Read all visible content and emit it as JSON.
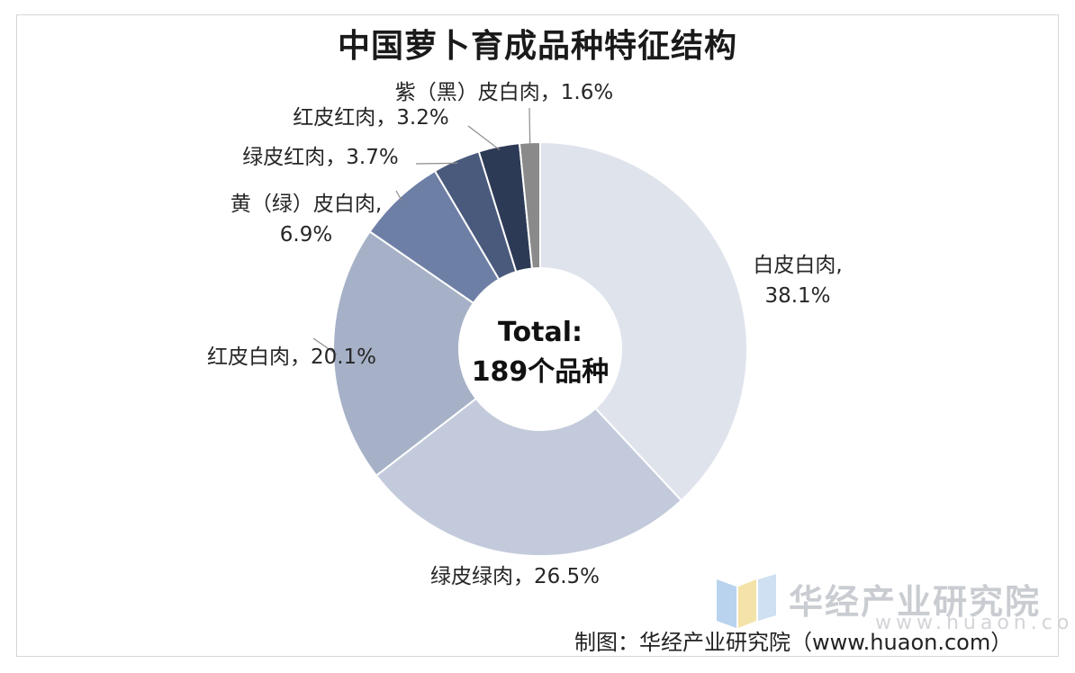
{
  "chart_data": {
    "type": "pie",
    "title": "中国萝卜育成品种特征结构",
    "center_label": [
      "Total:",
      "189个品种"
    ],
    "categories": [
      "白皮白肉",
      "绿皮绿肉",
      "红皮白肉",
      "黄（绿）皮白肉",
      "绿皮红肉",
      "红皮红肉",
      "紫（黑）皮白肉"
    ],
    "values": [
      38.1,
      26.5,
      20.1,
      6.9,
      3.7,
      3.2,
      1.6
    ],
    "unit": "%",
    "labels": [
      [
        "白皮白肉,",
        "38.1%"
      ],
      [
        "绿皮绿肉，26.5%"
      ],
      [
        "红皮白肉，20.1%"
      ],
      [
        "黄（绿）皮白肉,",
        "6.9%"
      ],
      [
        "绿皮红肉，3.7%"
      ],
      [
        "红皮红肉，3.2%"
      ],
      [
        "紫（黑）皮白肉，1.6%"
      ]
    ],
    "colors": [
      "#dfe3ec",
      "#c3cadb",
      "#a6b1c7",
      "#6e7fa6",
      "#4a5a7d",
      "#2d3a56",
      "#8a8a8a"
    ],
    "legend": "none"
  },
  "watermark": {
    "name": "华经产业研究院",
    "url": "www.huaon.com"
  },
  "source": "制图：华经产业研究院（www.huaon.com）"
}
